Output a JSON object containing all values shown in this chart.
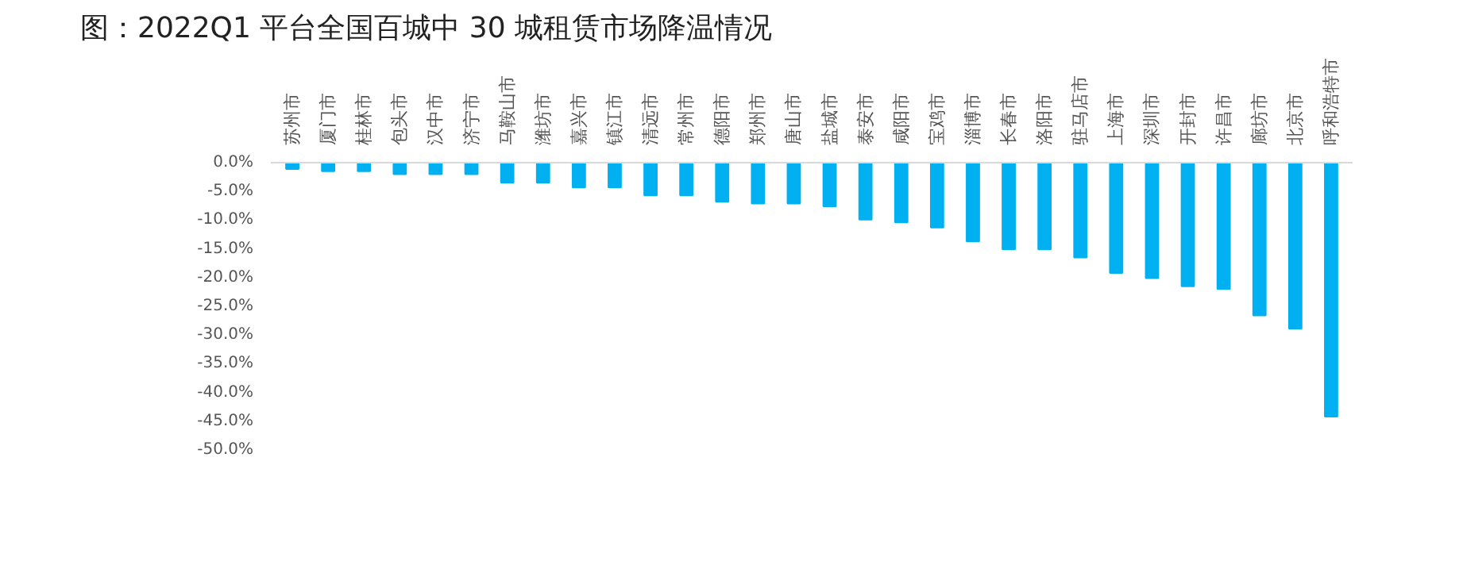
{
  "chart_data": {
    "type": "bar",
    "title": "图：2022Q1 平台全国百城中 30 城租赁市场降温情况",
    "categories": [
      "苏州市",
      "厦门市",
      "桂林市",
      "包头市",
      "汉中市",
      "济宁市",
      "马鞍山市",
      "潍坊市",
      "嘉兴市",
      "镇江市",
      "清远市",
      "常州市",
      "德阳市",
      "郑州市",
      "唐山市",
      "盐城市",
      "泰安市",
      "咸阳市",
      "宝鸡市",
      "淄博市",
      "长春市",
      "洛阳市",
      "驻马店市",
      "上海市",
      "深圳市",
      "开封市",
      "许昌市",
      "廊坊市",
      "北京市",
      "呼和浩特市"
    ],
    "values": [
      -1.1,
      -1.5,
      -1.5,
      -2.0,
      -2.0,
      -2.0,
      -3.5,
      -3.5,
      -4.3,
      -4.3,
      -5.7,
      -5.7,
      -6.8,
      -7.1,
      -7.1,
      -7.6,
      -9.9,
      -10.4,
      -11.3,
      -13.7,
      -15.1,
      -15.1,
      -16.5,
      -19.2,
      -20.1,
      -21.5,
      -22.0,
      -26.6,
      -28.9,
      -44.2
    ],
    "color": "#00b0f0",
    "ylim": [
      -50,
      0
    ],
    "yticks": [
      {
        "value": 0,
        "label": "0.0%"
      },
      {
        "value": -5,
        "label": "-5.0%"
      },
      {
        "value": -10,
        "label": "-10.0%"
      },
      {
        "value": -15,
        "label": "-15.0%"
      },
      {
        "value": -20,
        "label": "-20.0%"
      },
      {
        "value": -25,
        "label": "-25.0%"
      },
      {
        "value": -30,
        "label": "-30.0%"
      },
      {
        "value": -35,
        "label": "-35.0%"
      },
      {
        "value": -40,
        "label": "-40.0%"
      },
      {
        "value": -45,
        "label": "-45.0%"
      },
      {
        "value": -50,
        "label": "-50.0%"
      }
    ],
    "grid": false
  }
}
